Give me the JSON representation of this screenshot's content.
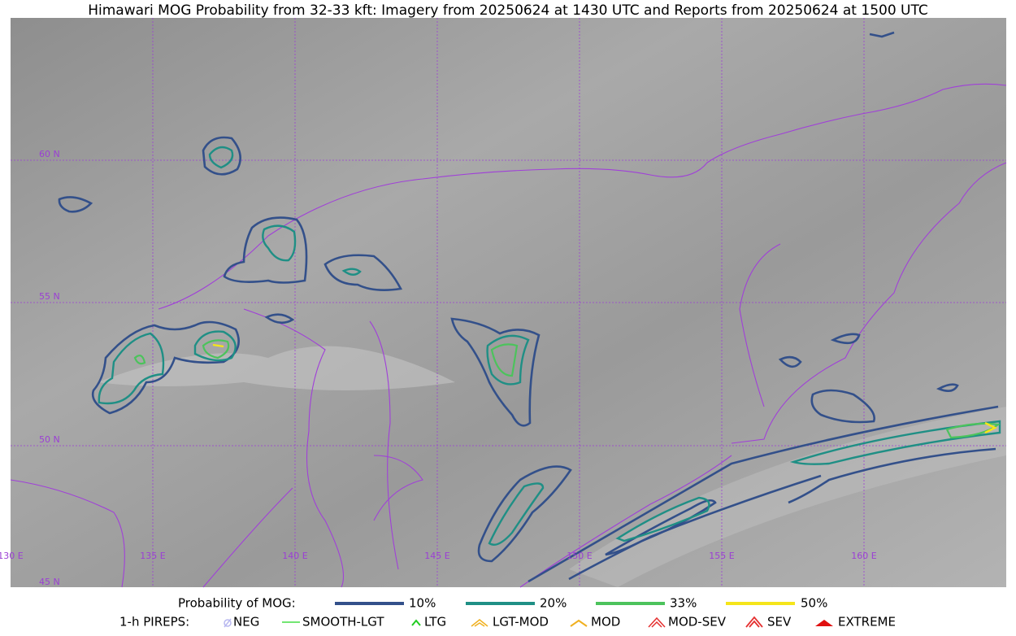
{
  "title": "Himawari MOG Probability from 32-33 kft: Imagery from 20250624 at 1430 UTC and Reports from 20250624 at 1500 UTC",
  "map": {
    "lat_labels": [
      "60 N",
      "55 N",
      "50 N",
      "45 N"
    ],
    "lon_labels": [
      "130 E",
      "135 E",
      "140 E",
      "145 E",
      "150 E",
      "155 E",
      "160 E"
    ]
  },
  "legend": {
    "mog": {
      "title": "Probability of MOG:",
      "items": [
        "10%",
        "20%",
        "33%",
        "50%"
      ]
    },
    "pireps": {
      "title": "1-h PIREPS:",
      "items": [
        "NEG",
        "SMOOTH-LGT",
        "LTG",
        "LGT-MOD",
        "MOD",
        "MOD-SEV",
        "SEV",
        "EXTREME"
      ]
    }
  }
}
